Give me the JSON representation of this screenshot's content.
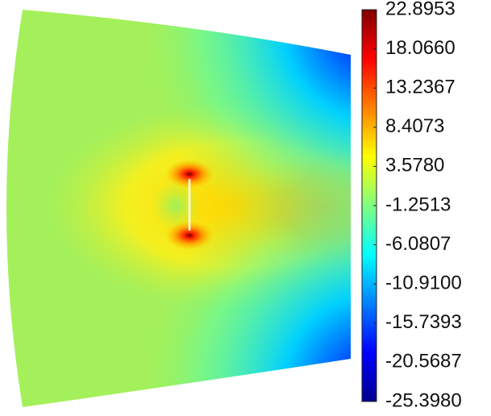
{
  "chart_data": {
    "type": "contour",
    "colorbar": {
      "colormap": "jet",
      "lim": [
        -25.398,
        22.8953
      ],
      "ticks": [
        22.8953,
        {
          "value": 18.066,
          "label": "18.0660"
        },
        13.2367,
        8.4073,
        {
          "value": 3.578,
          "label": "3.5780"
        },
        -1.2513,
        -6.0807,
        {
          "value": -10.91,
          "label": "-10.9100"
        },
        -15.7393,
        -20.5687,
        {
          "value": -25.398,
          "label": "-25.3980"
        }
      ]
    }
  }
}
